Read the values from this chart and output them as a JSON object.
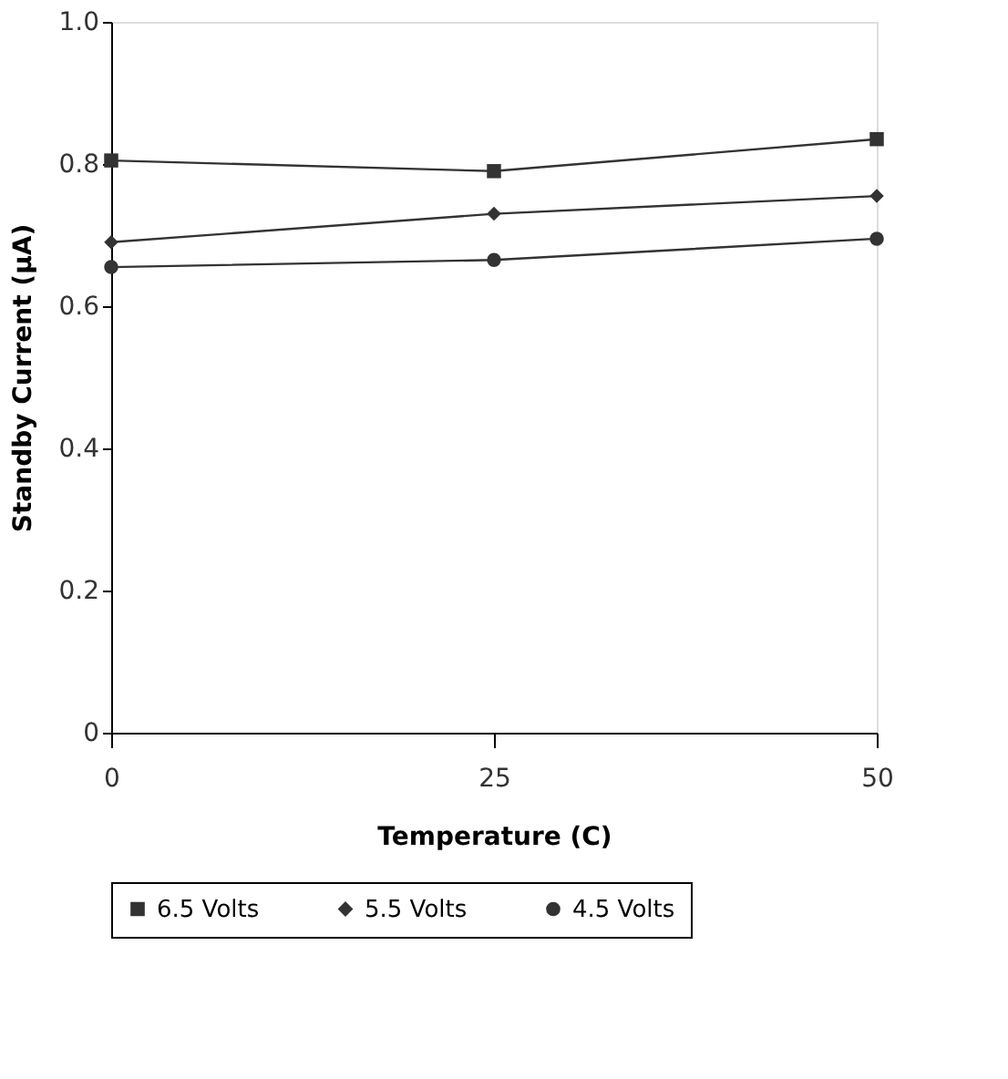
{
  "chart_data": {
    "type": "line",
    "xlabel": "Temperature (C)",
    "ylabel": "Standby Current (μA)",
    "x": [
      0,
      25,
      50
    ],
    "xlim": [
      0,
      50
    ],
    "xticks": [
      0,
      25,
      50
    ],
    "ylim": [
      0,
      1.0
    ],
    "yticks": [
      0,
      0.2,
      0.4,
      0.6,
      0.8,
      {
        "value": 1,
        "label": "1.0"
      }
    ],
    "series": [
      {
        "name": "6.5 Volts",
        "color": "#333333",
        "marker": "square",
        "values": [
          0.805,
          0.79,
          0.835
        ]
      },
      {
        "name": "5.5 Volts",
        "color": "#333333",
        "marker": "diamond",
        "values": [
          0.69,
          0.73,
          0.755
        ]
      },
      {
        "name": "4.5 Volts",
        "color": "#333333",
        "marker": "circle",
        "values": [
          0.655,
          0.665,
          0.695
        ]
      }
    ],
    "grid": false,
    "legend": "bottom",
    "line_style": "solid"
  }
}
